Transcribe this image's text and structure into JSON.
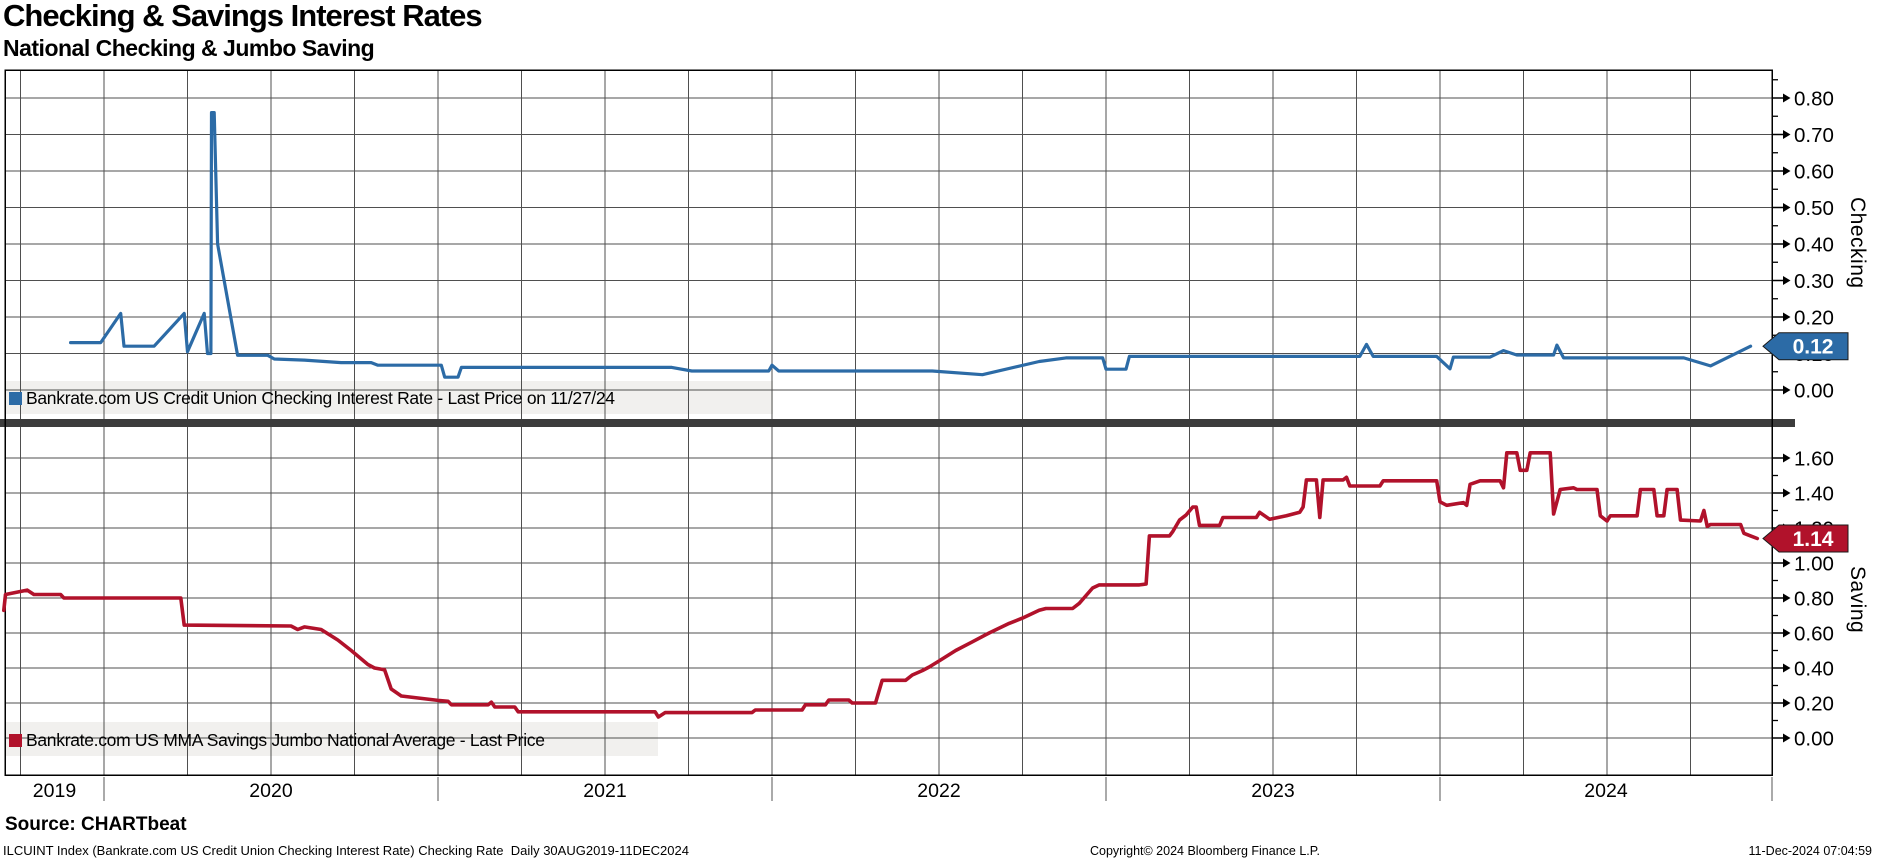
{
  "header": {
    "title": "Checking & Savings Interest Rates",
    "subtitle": "National Checking & Jumbo Saving"
  },
  "panels": {
    "checking": {
      "axis_title": "Checking",
      "ticks": [
        [
          "0.80",
          0.8
        ],
        [
          "0.70",
          0.7
        ],
        [
          "0.60",
          0.6
        ],
        [
          "0.50",
          0.5
        ],
        [
          "0.40",
          0.4
        ],
        [
          "0.30",
          0.3
        ],
        [
          "0.20",
          0.2
        ],
        [
          "0.10",
          0.1
        ],
        [
          "0.00",
          0.0
        ]
      ],
      "minor_step": 0.05,
      "last_price": "0.12",
      "last_price_value": 0.12,
      "tag_color": "#2c6ba6",
      "legend": {
        "label": "Bankrate.com US Credit Union Checking Interest Rate - Last Price on 11/27/24",
        "color": "#2c6ba6"
      }
    },
    "saving": {
      "axis_title": "Saving",
      "ticks": [
        [
          "1.60",
          1.6
        ],
        [
          "1.40",
          1.4
        ],
        [
          "1.20",
          1.2
        ],
        [
          "1.00",
          1.0
        ],
        [
          "0.80",
          0.8
        ],
        [
          "0.60",
          0.6
        ],
        [
          "0.40",
          0.4
        ],
        [
          "0.20",
          0.2
        ],
        [
          "0.00",
          0.0
        ]
      ],
      "minor_step": 0.1,
      "last_price": "1.14",
      "last_price_value": 1.14,
      "tag_color": "#b1122b",
      "legend": {
        "label": "Bankrate.com US MMA Savings Jumbo National Average - Last Price",
        "color": "#b1122b"
      }
    }
  },
  "x_axis": {
    "years": [
      "2019",
      "2020",
      "2021",
      "2022",
      "2023",
      "2024"
    ]
  },
  "footer": {
    "source": "Source: CHARTbeat",
    "description": "ILCUINT Index (Bankrate.com US Credit Union Checking Interest Rate) Checking Rate  Daily 30AUG2019-11DEC2024",
    "copyright": "Copyright© 2024 Bloomberg Finance L.P.",
    "timestamp": "11-Dec-2024 07:04:59"
  },
  "chart_data": [
    {
      "type": "line",
      "name": "Bankrate.com US Credit Union Checking Interest Rate",
      "axis": "checking",
      "color": "#2c6ba6",
      "stroke_width": 3.2,
      "x_range": [
        2019.9,
        2024.93
      ],
      "ylim": [
        0,
        0.877
      ],
      "grid": true,
      "legend_position": "bottom-left",
      "points": [
        [
          2019.9,
          0.13
        ],
        [
          2019.99,
          0.13
        ],
        [
          2020.05,
          0.21
        ],
        [
          2020.06,
          0.12
        ],
        [
          2020.15,
          0.12
        ],
        [
          2020.24,
          0.21
        ],
        [
          2020.25,
          0.105
        ],
        [
          2020.3,
          0.21
        ],
        [
          2020.31,
          0.1
        ],
        [
          2020.32,
          0.1
        ],
        [
          2020.322,
          0.76
        ],
        [
          2020.33,
          0.76
        ],
        [
          2020.34,
          0.4
        ],
        [
          2020.4,
          0.095
        ],
        [
          2020.49,
          0.095
        ],
        [
          2020.51,
          0.085
        ],
        [
          2020.6,
          0.082
        ],
        [
          2020.71,
          0.075
        ],
        [
          2020.8,
          0.075
        ],
        [
          2020.82,
          0.068
        ],
        [
          2020.97,
          0.068
        ],
        [
          2021.01,
          0.068
        ],
        [
          2021.02,
          0.035
        ],
        [
          2021.06,
          0.035
        ],
        [
          2021.07,
          0.062
        ],
        [
          2021.7,
          0.062
        ],
        [
          2021.76,
          0.052
        ],
        [
          2021.99,
          0.052
        ],
        [
          2022.0,
          0.068
        ],
        [
          2022.02,
          0.052
        ],
        [
          2022.48,
          0.052
        ],
        [
          2022.63,
          0.042
        ],
        [
          2022.8,
          0.078
        ],
        [
          2022.88,
          0.088
        ],
        [
          2022.99,
          0.088
        ],
        [
          2023.0,
          0.057
        ],
        [
          2023.06,
          0.057
        ],
        [
          2023.07,
          0.092
        ],
        [
          2023.76,
          0.092
        ],
        [
          2023.78,
          0.125
        ],
        [
          2023.8,
          0.092
        ],
        [
          2023.99,
          0.092
        ],
        [
          2024.03,
          0.058
        ],
        [
          2024.04,
          0.09
        ],
        [
          2024.15,
          0.09
        ],
        [
          2024.19,
          0.108
        ],
        [
          2024.23,
          0.096
        ],
        [
          2024.34,
          0.096
        ],
        [
          2024.35,
          0.123
        ],
        [
          2024.37,
          0.088
        ],
        [
          2024.73,
          0.088
        ],
        [
          2024.81,
          0.066
        ],
        [
          2024.93,
          0.12
        ]
      ]
    },
    {
      "type": "line",
      "name": "Bankrate.com US MMA Savings Jumbo National Average",
      "axis": "saving",
      "color": "#b1122b",
      "stroke_width": 3.6,
      "x_range": [
        2019.7,
        2024.95
      ],
      "ylim": [
        0,
        1.78
      ],
      "grid": true,
      "legend_position": "bottom-left",
      "points": [
        [
          2019.7,
          0.73
        ],
        [
          2019.705,
          0.82
        ],
        [
          2019.77,
          0.845
        ],
        [
          2019.79,
          0.82
        ],
        [
          2019.87,
          0.82
        ],
        [
          2019.88,
          0.8
        ],
        [
          2020.23,
          0.8
        ],
        [
          2020.24,
          0.645
        ],
        [
          2020.56,
          0.64
        ],
        [
          2020.58,
          0.62
        ],
        [
          2020.6,
          0.635
        ],
        [
          2020.65,
          0.62
        ],
        [
          2020.7,
          0.56
        ],
        [
          2020.74,
          0.5
        ],
        [
          2020.79,
          0.42
        ],
        [
          2020.81,
          0.4
        ],
        [
          2020.84,
          0.39
        ],
        [
          2020.86,
          0.28
        ],
        [
          2020.89,
          0.24
        ],
        [
          2021.0,
          0.215
        ],
        [
          2021.03,
          0.21
        ],
        [
          2021.04,
          0.19
        ],
        [
          2021.15,
          0.19
        ],
        [
          2021.16,
          0.205
        ],
        [
          2021.17,
          0.177
        ],
        [
          2021.23,
          0.177
        ],
        [
          2021.24,
          0.15
        ],
        [
          2021.65,
          0.15
        ],
        [
          2021.66,
          0.12
        ],
        [
          2021.68,
          0.145
        ],
        [
          2021.94,
          0.145
        ],
        [
          2021.95,
          0.16
        ],
        [
          2022.09,
          0.16
        ],
        [
          2022.1,
          0.19
        ],
        [
          2022.16,
          0.19
        ],
        [
          2022.17,
          0.217
        ],
        [
          2022.23,
          0.217
        ],
        [
          2022.24,
          0.2
        ],
        [
          2022.31,
          0.2
        ],
        [
          2022.33,
          0.33
        ],
        [
          2022.4,
          0.33
        ],
        [
          2022.42,
          0.36
        ],
        [
          2022.45,
          0.385
        ],
        [
          2022.47,
          0.405
        ],
        [
          2022.5,
          0.44
        ],
        [
          2022.55,
          0.5
        ],
        [
          2022.6,
          0.55
        ],
        [
          2022.65,
          0.6
        ],
        [
          2022.71,
          0.655
        ],
        [
          2022.75,
          0.685
        ],
        [
          2022.8,
          0.73
        ],
        [
          2022.82,
          0.74
        ],
        [
          2022.9,
          0.74
        ],
        [
          2022.92,
          0.77
        ],
        [
          2022.96,
          0.857
        ],
        [
          2022.98,
          0.875
        ],
        [
          2023.1,
          0.875
        ],
        [
          2023.12,
          0.88
        ],
        [
          2023.13,
          1.155
        ],
        [
          2023.19,
          1.155
        ],
        [
          2023.2,
          1.18
        ],
        [
          2023.22,
          1.245
        ],
        [
          2023.24,
          1.275
        ],
        [
          2023.26,
          1.32
        ],
        [
          2023.27,
          1.32
        ],
        [
          2023.28,
          1.215
        ],
        [
          2023.34,
          1.215
        ],
        [
          2023.35,
          1.26
        ],
        [
          2023.45,
          1.26
        ],
        [
          2023.46,
          1.29
        ],
        [
          2023.49,
          1.25
        ],
        [
          2023.54,
          1.27
        ],
        [
          2023.58,
          1.29
        ],
        [
          2023.59,
          1.32
        ],
        [
          2023.6,
          1.475
        ],
        [
          2023.63,
          1.475
        ],
        [
          2023.64,
          1.26
        ],
        [
          2023.65,
          1.475
        ],
        [
          2023.71,
          1.475
        ],
        [
          2023.72,
          1.49
        ],
        [
          2023.73,
          1.44
        ],
        [
          2023.82,
          1.44
        ],
        [
          2023.83,
          1.47
        ],
        [
          2023.99,
          1.47
        ],
        [
          2024.0,
          1.35
        ],
        [
          2024.02,
          1.33
        ],
        [
          2024.07,
          1.345
        ],
        [
          2024.08,
          1.33
        ],
        [
          2024.09,
          1.45
        ],
        [
          2024.12,
          1.47
        ],
        [
          2024.18,
          1.47
        ],
        [
          2024.19,
          1.43
        ],
        [
          2024.2,
          1.63
        ],
        [
          2024.23,
          1.63
        ],
        [
          2024.24,
          1.53
        ],
        [
          2024.26,
          1.53
        ],
        [
          2024.27,
          1.63
        ],
        [
          2024.33,
          1.63
        ],
        [
          2024.34,
          1.28
        ],
        [
          2024.36,
          1.42
        ],
        [
          2024.4,
          1.43
        ],
        [
          2024.41,
          1.42
        ],
        [
          2024.47,
          1.42
        ],
        [
          2024.48,
          1.27
        ],
        [
          2024.5,
          1.24
        ],
        [
          2024.51,
          1.27
        ],
        [
          2024.59,
          1.27
        ],
        [
          2024.6,
          1.42
        ],
        [
          2024.64,
          1.42
        ],
        [
          2024.65,
          1.27
        ],
        [
          2024.67,
          1.27
        ],
        [
          2024.68,
          1.42
        ],
        [
          2024.71,
          1.42
        ],
        [
          2024.72,
          1.245
        ],
        [
          2024.78,
          1.24
        ],
        [
          2024.79,
          1.3
        ],
        [
          2024.8,
          1.21
        ],
        [
          2024.81,
          1.22
        ],
        [
          2024.9,
          1.22
        ],
        [
          2024.91,
          1.17
        ],
        [
          2024.93,
          1.155
        ],
        [
          2024.95,
          1.14
        ]
      ]
    }
  ]
}
